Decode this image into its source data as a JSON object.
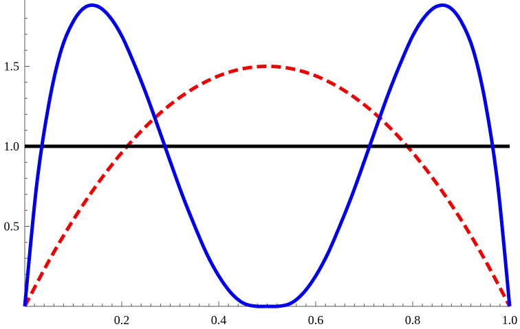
{
  "chart_data": {
    "type": "line",
    "xlim": [
      0,
      1
    ],
    "ylim": [
      0,
      1.88
    ],
    "x_ticks": [
      {
        "value": 0.2,
        "label": "0.2"
      },
      {
        "value": 0.4,
        "label": "0.4"
      },
      {
        "value": 0.6,
        "label": "0.6"
      },
      {
        "value": 0.8,
        "label": "0.8"
      },
      {
        "value": 1.0,
        "label": "1.0"
      }
    ],
    "y_ticks": [
      {
        "value": 0.5,
        "label": "0.5"
      },
      {
        "value": 1.0,
        "label": "1.0"
      },
      {
        "value": 1.5,
        "label": "1.5"
      }
    ],
    "grid": false,
    "legend": "none",
    "series": [
      {
        "color": "#0000ee",
        "style": "solid",
        "x": [
          0,
          0.025,
          0.05,
          0.075,
          0.1,
          0.125,
          0.15,
          0.175,
          0.2,
          0.225,
          0.25,
          0.275,
          0.3,
          0.325,
          0.35,
          0.375,
          0.4,
          0.425,
          0.45,
          0.475,
          0.5,
          0.525,
          0.55,
          0.575,
          0.6,
          0.625,
          0.65,
          0.675,
          0.7,
          0.725,
          0.75,
          0.775,
          0.8,
          0.825,
          0.85,
          0.875,
          0.9,
          0.925,
          0.95,
          0.975,
          1
        ],
        "y": [
          0,
          0.77,
          1.27,
          1.6,
          1.78,
          1.87,
          1.875,
          1.81,
          1.69,
          1.52,
          1.33,
          1.12,
          0.905,
          0.695,
          0.505,
          0.33,
          0.19,
          0.085,
          0.021,
          0.001,
          0,
          0.001,
          0.021,
          0.085,
          0.19,
          0.33,
          0.505,
          0.695,
          0.905,
          1.12,
          1.33,
          1.52,
          1.69,
          1.81,
          1.875,
          1.87,
          1.78,
          1.6,
          1.27,
          0.77,
          0
        ]
      },
      {
        "color": "#ee0000",
        "style": "dashed",
        "x": [
          0,
          0.05,
          0.1,
          0.15,
          0.2,
          0.25,
          0.3,
          0.35,
          0.4,
          0.45,
          0.5,
          0.55,
          0.6,
          0.65,
          0.7,
          0.75,
          0.8,
          0.85,
          0.9,
          0.95,
          1
        ],
        "y": [
          0,
          0.285,
          0.54,
          0.765,
          0.96,
          1.125,
          1.26,
          1.365,
          1.44,
          1.485,
          1.5,
          1.485,
          1.44,
          1.365,
          1.26,
          1.125,
          0.96,
          0.765,
          0.54,
          0.285,
          0
        ]
      },
      {
        "color": "#000000",
        "style": "solid",
        "x": [
          0,
          1
        ],
        "y": [
          1,
          1
        ]
      }
    ]
  }
}
